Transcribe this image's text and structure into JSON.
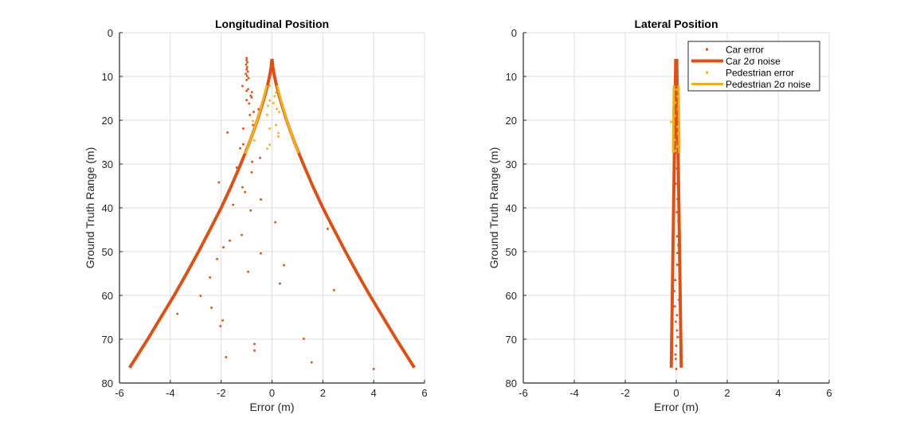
{
  "chart_data": [
    {
      "type": "scatter",
      "title": "Longitudinal Position",
      "xlabel": "Error (m)",
      "ylabel": "Ground Truth Range (m)",
      "xlim": [
        -6,
        6
      ],
      "ylim": [
        0,
        80
      ],
      "y_reversed": true,
      "grid": true,
      "xticks": [
        -6,
        -4,
        -2,
        0,
        2,
        4,
        6
      ],
      "yticks": [
        0,
        10,
        20,
        30,
        40,
        50,
        60,
        70,
        80
      ],
      "series": [
        {
          "name": "Car error",
          "kind": "points",
          "color": "#D95319",
          "points": [
            [
              -1.0,
              5.8
            ],
            [
              -1.0,
              6.3
            ],
            [
              -0.97,
              6.8
            ],
            [
              -1.02,
              7.3
            ],
            [
              -0.98,
              7.9
            ],
            [
              -1.0,
              8.4
            ],
            [
              -0.95,
              8.9
            ],
            [
              -1.03,
              9.4
            ],
            [
              -0.98,
              9.9
            ],
            [
              -0.92,
              10.4
            ],
            [
              -1.0,
              10.8
            ],
            [
              -1.16,
              12.2
            ],
            [
              -0.94,
              12.9
            ],
            [
              -1.0,
              13.3
            ],
            [
              -0.79,
              13.6
            ],
            [
              -0.84,
              14.4
            ],
            [
              -0.8,
              14.8
            ],
            [
              -1.0,
              15.4
            ],
            [
              -0.9,
              16.2
            ],
            [
              -0.53,
              17.5
            ],
            [
              -0.72,
              18.1
            ],
            [
              -0.87,
              18.8
            ],
            [
              -0.75,
              21.1
            ],
            [
              -1.13,
              21.9
            ],
            [
              -1.75,
              22.8
            ],
            [
              -1.13,
              25.5
            ],
            [
              -1.25,
              26.4
            ],
            [
              -0.47,
              28.6
            ],
            [
              -0.78,
              29.5
            ],
            [
              -1.39,
              30.8
            ],
            [
              -0.8,
              31.9
            ],
            [
              -2.09,
              34.2
            ],
            [
              -1.16,
              35.3
            ],
            [
              -1.06,
              36.4
            ],
            [
              -0.44,
              38.1
            ],
            [
              -1.53,
              39.3
            ],
            [
              -0.84,
              40.6
            ],
            [
              0.13,
              43.3
            ],
            [
              2.19,
              44.8
            ],
            [
              -1.19,
              46.2
            ],
            [
              -1.66,
              47.5
            ],
            [
              -1.91,
              49.0
            ],
            [
              -0.44,
              50.4
            ],
            [
              -2.16,
              51.7
            ],
            [
              0.47,
              53.1
            ],
            [
              -0.94,
              54.6
            ],
            [
              -2.44,
              55.9
            ],
            [
              0.31,
              57.3
            ],
            [
              2.44,
              58.8
            ],
            [
              -2.81,
              60.1
            ],
            [
              -2.38,
              62.8
            ],
            [
              -3.72,
              64.2
            ],
            [
              -1.94,
              65.7
            ],
            [
              -2.03,
              67.0
            ],
            [
              1.25,
              69.9
            ],
            [
              -0.69,
              71.1
            ],
            [
              -0.69,
              72.6
            ],
            [
              -1.81,
              74.1
            ],
            [
              1.56,
              75.3
            ],
            [
              4.0,
              76.8
            ]
          ]
        },
        {
          "name": "Car 2σ noise",
          "kind": "bound",
          "color": "#D95319",
          "range": [
            6,
            8,
            10,
            12,
            15,
            20,
            25,
            30,
            35,
            40,
            45,
            50,
            55,
            60,
            65,
            70,
            76.5
          ],
          "bound": [
            0,
            0.037,
            0.098,
            0.174,
            0.31,
            0.574,
            0.88,
            1.23,
            1.6,
            2.0,
            2.44,
            2.89,
            3.36,
            3.85,
            4.37,
            4.89,
            5.6
          ]
        },
        {
          "name": "Pedestrian error",
          "kind": "points",
          "color": "#EDB120",
          "points": [
            [
              -0.09,
              12.1
            ],
            [
              0.16,
              13.7
            ],
            [
              0.1,
              14.5
            ],
            [
              -0.09,
              15.5
            ],
            [
              0.06,
              16.1
            ],
            [
              -0.16,
              16.7
            ],
            [
              0.19,
              17.4
            ],
            [
              0.28,
              18.1
            ],
            [
              -0.19,
              18.8
            ],
            [
              -0.75,
              20.2
            ],
            [
              0.16,
              21.1
            ],
            [
              -0.09,
              21.9
            ],
            [
              0.25,
              22.9
            ],
            [
              0.25,
              23.7
            ],
            [
              -0.69,
              24.6
            ],
            [
              -0.09,
              25.6
            ],
            [
              -0.19,
              26.5
            ],
            [
              -1.06,
              27.4
            ]
          ]
        },
        {
          "name": "Pedestrian 2σ noise",
          "kind": "bound",
          "color": "#EDB120",
          "range": [
            12,
            15,
            20,
            25,
            27.5
          ],
          "bound": [
            0.2,
            0.33,
            0.58,
            0.88,
            1.04
          ]
        }
      ]
    },
    {
      "type": "scatter",
      "title": "Lateral Position",
      "xlabel": "Error (m)",
      "ylabel": "Ground Truth Range (m)",
      "xlim": [
        -6,
        6
      ],
      "ylim": [
        0,
        80
      ],
      "y_reversed": true,
      "grid": true,
      "legend_position": "top-right",
      "xticks": [
        -6,
        -4,
        -2,
        0,
        2,
        4,
        6
      ],
      "yticks": [
        0,
        10,
        20,
        30,
        40,
        50,
        60,
        70,
        80
      ],
      "series": [
        {
          "name": "Car error",
          "kind": "points",
          "color": "#D95319",
          "points": [
            [
              0.0,
              6.5
            ],
            [
              0.02,
              8.5
            ],
            [
              -0.02,
              10.5
            ],
            [
              0.03,
              14.0
            ],
            [
              -0.03,
              17.0
            ],
            [
              0.04,
              20.5
            ],
            [
              0.02,
              24.0
            ],
            [
              -0.04,
              27.5
            ],
            [
              0.03,
              31.0
            ],
            [
              -0.02,
              34.5
            ],
            [
              0.05,
              38.0
            ],
            [
              0.02,
              41.0
            ],
            [
              0.08,
              43.0
            ],
            [
              0.04,
              46.5
            ],
            [
              0.08,
              48.5
            ],
            [
              0.05,
              50.3
            ],
            [
              0.04,
              53.0
            ],
            [
              -0.04,
              56.5
            ],
            [
              -0.08,
              59.0
            ],
            [
              0.1,
              61.0
            ],
            [
              -0.06,
              62.5
            ],
            [
              0.03,
              64.5
            ],
            [
              -0.02,
              66.0
            ],
            [
              0.03,
              68.0
            ],
            [
              0.06,
              69.5
            ],
            [
              0.0,
              71.5
            ],
            [
              -0.03,
              73.5
            ],
            [
              -0.02,
              74.5
            ],
            [
              0.0,
              76.8
            ]
          ]
        },
        {
          "name": "Car 2σ noise",
          "kind": "bound",
          "color": "#D95319",
          "range": [
            6,
            8,
            10,
            12,
            15,
            20,
            25,
            30,
            35,
            40,
            45,
            50,
            55,
            60,
            65,
            70,
            76.5
          ],
          "bound": [
            0.02,
            0.025,
            0.03,
            0.035,
            0.042,
            0.055,
            0.067,
            0.08,
            0.092,
            0.105,
            0.117,
            0.13,
            0.142,
            0.155,
            0.167,
            0.18,
            0.196
          ]
        },
        {
          "name": "Pedestrian error",
          "kind": "points",
          "color": "#EDB120",
          "points": [
            [
              0.0,
              13.0
            ],
            [
              0.05,
              14.5
            ],
            [
              -0.03,
              16.0
            ],
            [
              0.06,
              17.5
            ],
            [
              -0.05,
              19.0
            ],
            [
              -0.2,
              20.4
            ],
            [
              0.04,
              21.5
            ],
            [
              0.07,
              23.0
            ],
            [
              -0.06,
              24.5
            ],
            [
              0.03,
              26.0
            ],
            [
              -0.04,
              27.0
            ]
          ]
        },
        {
          "name": "Pedestrian 2σ noise",
          "kind": "bound",
          "color": "#EDB120",
          "range": [
            12,
            15,
            20,
            25,
            27.5
          ],
          "bound": [
            0.09,
            0.1,
            0.11,
            0.12,
            0.12
          ]
        }
      ]
    }
  ]
}
